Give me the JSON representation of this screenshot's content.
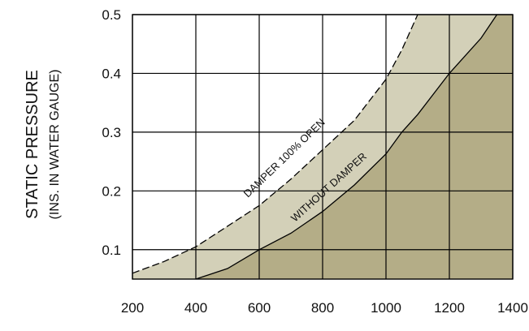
{
  "chart_data": {
    "type": "area",
    "title": "",
    "xlabel": "",
    "ylabel": "STATIC PRESSURE",
    "ylabel_sub": "(INS. IN WATER GAUGE)",
    "xlim": [
      200,
      1400
    ],
    "ylim": [
      0.05,
      0.5
    ],
    "x_ticks": [
      200,
      400,
      600,
      800,
      1000,
      1200,
      1400
    ],
    "y_ticks": [
      0.1,
      0.2,
      0.3,
      0.4,
      0.5
    ],
    "grid": true,
    "colors": {
      "without_damper_fill": "#b4ad87",
      "damper_open_fill": "#d3d0b8",
      "grid": "#000000",
      "curve": "#000000"
    },
    "series": [
      {
        "name": "DAMPER 100% OPEN",
        "style": "dashed",
        "x": [
          200,
          300,
          400,
          500,
          600,
          700,
          800,
          900,
          1000,
          1050,
          1100
        ],
        "y": [
          0.06,
          0.08,
          0.105,
          0.14,
          0.175,
          0.22,
          0.27,
          0.32,
          0.39,
          0.44,
          0.5
        ]
      },
      {
        "name": "WITHOUT DAMPER",
        "style": "solid",
        "x": [
          400,
          500,
          600,
          700,
          800,
          900,
          1000,
          1050,
          1100,
          1200,
          1300,
          1350
        ],
        "y": [
          0.05,
          0.068,
          0.1,
          0.128,
          0.165,
          0.21,
          0.263,
          0.3,
          0.33,
          0.4,
          0.46,
          0.5
        ]
      }
    ]
  }
}
